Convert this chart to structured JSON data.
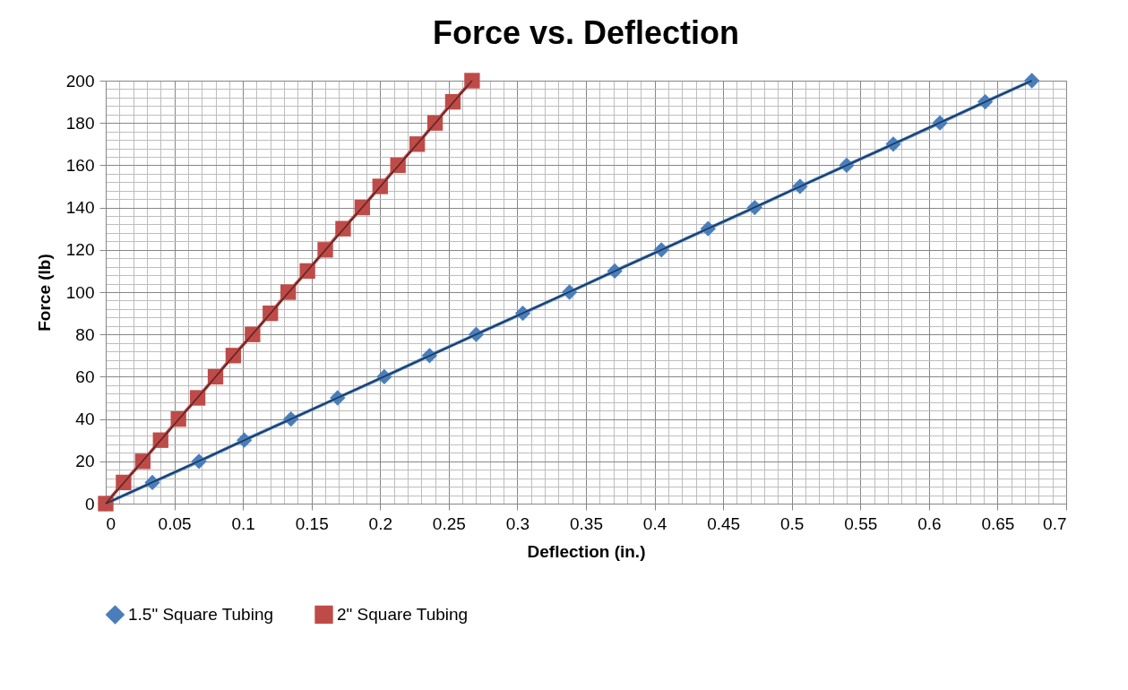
{
  "chart_data": {
    "type": "line",
    "title": "Force vs. Deflection",
    "xlabel": "Deflection (in.)",
    "ylabel": "Force (lb)",
    "xlim": [
      0,
      0.7
    ],
    "xticks": [
      0,
      0.05,
      0.1,
      0.15,
      0.2,
      0.25,
      0.3,
      0.35,
      0.4,
      0.45,
      0.5,
      0.55,
      0.6,
      0.65,
      0.7
    ],
    "ylim": [
      0,
      200
    ],
    "yticks": [
      0,
      20,
      40,
      60,
      80,
      100,
      120,
      140,
      160,
      180,
      200
    ],
    "grid": true,
    "legend": "bottom",
    "line_style": "solid",
    "series": [
      {
        "name": "1.5\" Square Tubing",
        "color": "#4a7ebb",
        "marker": "diamond",
        "x": [
          0,
          0.034,
          0.068,
          0.101,
          0.135,
          0.169,
          0.203,
          0.236,
          0.27,
          0.304,
          0.338,
          0.371,
          0.405,
          0.439,
          0.473,
          0.506,
          0.54,
          0.574,
          0.608,
          0.641,
          0.675
        ],
        "values": [
          0,
          10,
          20,
          30,
          40,
          50,
          60,
          70,
          80,
          90,
          100,
          110,
          120,
          130,
          140,
          150,
          160,
          170,
          180,
          190,
          200
        ]
      },
      {
        "name": "2\" Square Tubing",
        "color": "#be4b48",
        "marker": "square",
        "x": [
          0,
          0.013,
          0.027,
          0.04,
          0.053,
          0.067,
          0.08,
          0.093,
          0.107,
          0.12,
          0.133,
          0.147,
          0.16,
          0.173,
          0.187,
          0.2,
          0.213,
          0.227,
          0.24,
          0.253,
          0.267
        ],
        "values": [
          0,
          10,
          20,
          30,
          40,
          50,
          60,
          70,
          80,
          90,
          100,
          110,
          120,
          130,
          140,
          150,
          160,
          170,
          180,
          190,
          200
        ]
      },
      {
        "type": "line",
        "color": "#17375e",
        "marker": "none",
        "x": [
          0,
          0.675
        ],
        "values": [
          0,
          200
        ]
      },
      {
        "type": "line",
        "color": "#632523",
        "marker": "none",
        "x": [
          0,
          0.267
        ],
        "values": [
          0,
          200
        ]
      }
    ]
  }
}
